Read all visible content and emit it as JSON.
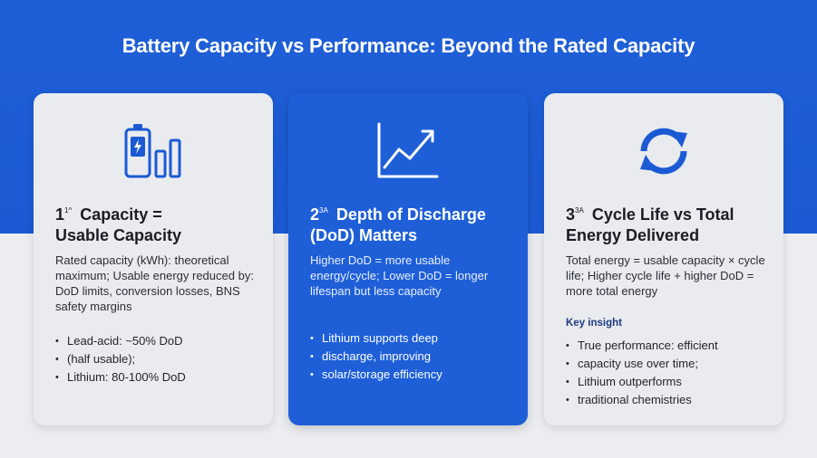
{
  "title": "Battery Capacity vs Performance: Beyond the Rated Capacity",
  "colors": {
    "accent_blue": "#1e5fd8",
    "card_light": "#e9ebef",
    "icon_blue": "#1b5ad4",
    "text_dark": "#1a1d24"
  },
  "cards": [
    {
      "icon": "battery-bars-icon",
      "number": "1",
      "number_sup": "1^",
      "title_line1": "Capacity =",
      "title_line2": "Usable Capacity",
      "description": "Rated capacity (kWh): theoretical maximum; Usable energy reduced by: DoD limits, conversion losses, BNS safety margins",
      "insight": "",
      "bullets": [
        "Lead-acid: ~50% DoD",
        "(half usable);",
        "Lithium: 80-100% DoD"
      ]
    },
    {
      "icon": "line-chart-icon",
      "number": "2",
      "number_sup": "3A",
      "title_line1": "Depth of Discharge",
      "title_line2": "(DoD) Matters",
      "description": "Higher DoD = more usable energy/cycle; Lower DoD = longer lifespan but less capacity",
      "insight": "",
      "bullets": [
        "Lithium supports deep",
        "discharge, improving",
        "solar/storage efficiency"
      ]
    },
    {
      "icon": "cycle-arrows-icon",
      "number": "3",
      "number_sup": "3A",
      "title_line1": "Cycle Life vs Total",
      "title_line2": "Energy Delivered",
      "description": "Total energy = usable capacity × cycle life; Higher cycle life + higher DoD = more total energy",
      "insight": "Key insight",
      "bullets": [
        "True performance: efficient",
        "capacity use over time;",
        "Lithium outperforms",
        "traditional chemistries"
      ]
    }
  ]
}
